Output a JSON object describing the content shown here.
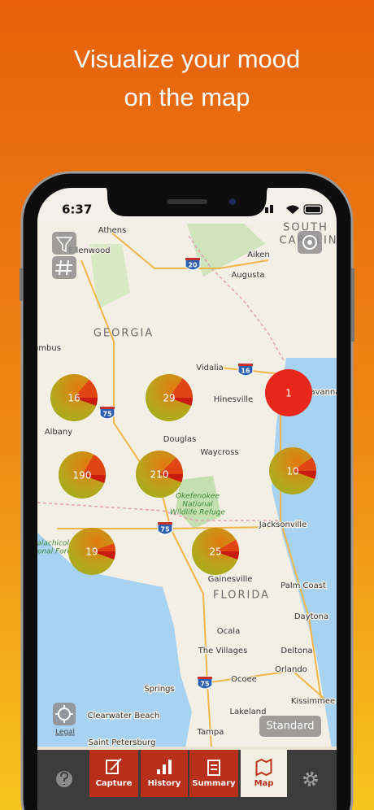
{
  "headline": {
    "lines": [
      "Visualize your mood",
      "on the map"
    ]
  },
  "status_bar": {
    "time": "6:37"
  },
  "map": {
    "labels": [
      "Athens",
      "Ellenwood",
      "SOUTH",
      "CAROLINA",
      "Aiken",
      "Augusta",
      "GEORGIA",
      "Columbus",
      "Vidalia",
      "Hinesville",
      "Savannah",
      "Albany",
      "Douglas",
      "Waycross",
      "Okefenokee",
      "National",
      "Wildlife Refuge",
      "Jacksonville",
      "Apalachicola",
      "National Forest",
      "Gainesville",
      "FLORIDA",
      "Palm Coast",
      "Daytona",
      "Ocala",
      "The Villages",
      "Deltona",
      "Orlando",
      "Ocoee",
      "Springs",
      "Kissimmee",
      "Lakeland",
      "Clearwater Beach",
      "Tampa",
      "Saint Petersburg"
    ],
    "highway_shields": [
      "20",
      "16",
      "75",
      "75",
      "75"
    ],
    "clusters": [
      "16",
      "29",
      "1",
      "190",
      "210",
      "10",
      "19",
      "25"
    ],
    "legal": "Legal",
    "map_type_button": "Standard"
  },
  "tab_bar": {
    "tabs": [
      "Capture",
      "History",
      "Summary",
      "Map"
    ]
  }
}
